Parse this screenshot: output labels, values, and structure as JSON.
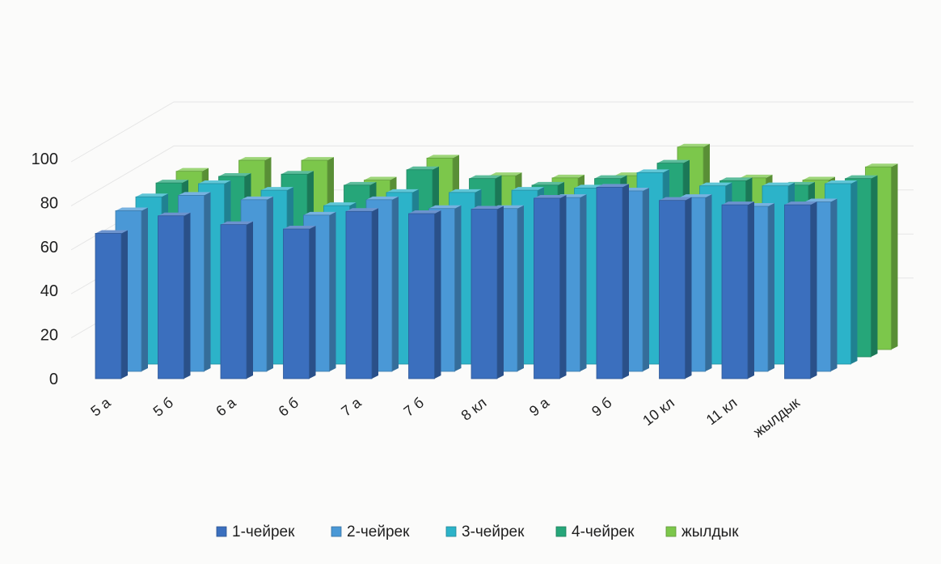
{
  "chart_data": {
    "type": "bar",
    "subtype": "3d-column",
    "categories": [
      "5 а",
      "5 б",
      "6 а",
      "6 б",
      "7 а",
      "7 б",
      "8 кл",
      "9 а",
      "9 б",
      "10 кл",
      "11 кл",
      "жылдык"
    ],
    "series": [
      {
        "name": "1-чейрек",
        "color": "#3b6fbe",
        "values": [
          66,
          74,
          70,
          68,
          76,
          75,
          77,
          82,
          87,
          81,
          79,
          79
        ]
      },
      {
        "name": "2-чейрек",
        "color": "#4a98d6",
        "values": [
          73,
          80,
          78,
          71,
          78,
          74,
          74,
          79,
          82,
          79,
          75,
          77
        ]
      },
      {
        "name": "3-чейрек",
        "color": "#2cb3c9",
        "values": [
          76,
          82,
          79,
          72,
          78,
          78,
          79,
          80,
          87,
          81,
          81,
          82
        ]
      },
      {
        "name": "4-чейрек",
        "color": "#26a679",
        "values": [
          79,
          82,
          83,
          78,
          85,
          81,
          78,
          81,
          88,
          80,
          78,
          81
        ]
      },
      {
        "name": "жылдык",
        "color": "#7cc74b",
        "values": [
          81,
          86,
          86,
          77,
          87,
          79,
          78,
          79,
          92,
          78,
          77,
          83
        ]
      }
    ],
    "yticks": [
      "0",
      "20",
      "40",
      "60",
      "80",
      "100"
    ],
    "ylim": [
      0,
      100
    ],
    "legend_position": "bottom",
    "grid": true
  }
}
